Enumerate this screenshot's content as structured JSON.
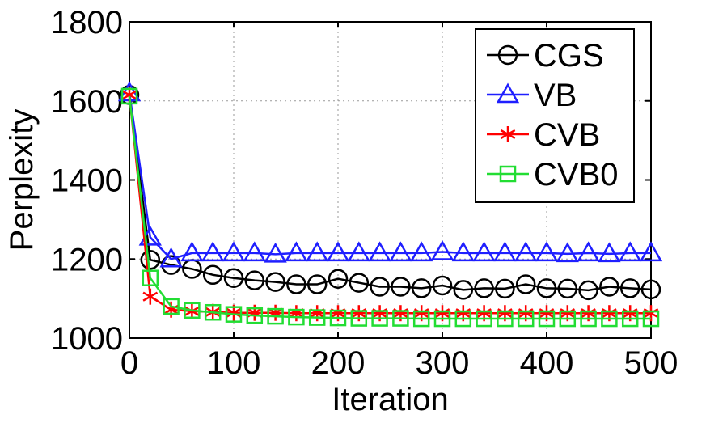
{
  "chart_data": {
    "type": "line",
    "title": "",
    "xlabel": "Iteration",
    "ylabel": "Perplexity",
    "xlim": [
      0,
      500
    ],
    "ylim": [
      1000,
      1800
    ],
    "xticks": [
      0,
      100,
      200,
      300,
      400,
      500
    ],
    "yticks": [
      1000,
      1200,
      1400,
      1600,
      1800
    ],
    "grid": true,
    "legend_position": "top-right",
    "x": [
      0,
      20,
      40,
      60,
      80,
      100,
      120,
      140,
      160,
      180,
      200,
      220,
      240,
      260,
      280,
      300,
      320,
      340,
      360,
      380,
      400,
      420,
      440,
      460,
      480,
      500
    ],
    "series": [
      {
        "name": "CGS",
        "marker": "circle",
        "color": "#000000",
        "values": [
          1615,
          1198,
          1185,
          1175,
          1160,
          1152,
          1146,
          1142,
          1136,
          1136,
          1150,
          1140,
          1130,
          1130,
          1126,
          1133,
          1122,
          1126,
          1125,
          1136,
          1126,
          1125,
          1121,
          1130,
          1126,
          1123
        ]
      },
      {
        "name": "VB",
        "marker": "triangle",
        "color": "#1f1fff",
        "values": [
          1620,
          1255,
          1200,
          1215,
          1215,
          1215,
          1215,
          1212,
          1215,
          1215,
          1215,
          1215,
          1215,
          1215,
          1215,
          1218,
          1215,
          1215,
          1215,
          1215,
          1215,
          1213,
          1215,
          1213,
          1215,
          1215
        ]
      },
      {
        "name": "CVB",
        "marker": "asterisk",
        "color": "#ff0000",
        "values": [
          1615,
          1105,
          1072,
          1068,
          1066,
          1064,
          1064,
          1064,
          1063,
          1063,
          1063,
          1063,
          1063,
          1063,
          1063,
          1063,
          1063,
          1063,
          1063,
          1063,
          1063,
          1063,
          1063,
          1063,
          1063,
          1063
        ]
      },
      {
        "name": "CVB0",
        "marker": "square",
        "color": "#22dd33",
        "values": [
          1612,
          1152,
          1080,
          1070,
          1065,
          1060,
          1057,
          1055,
          1053,
          1052,
          1051,
          1050,
          1050,
          1050,
          1049,
          1049,
          1049,
          1049,
          1049,
          1049,
          1049,
          1049,
          1049,
          1049,
          1049,
          1049
        ]
      }
    ]
  }
}
